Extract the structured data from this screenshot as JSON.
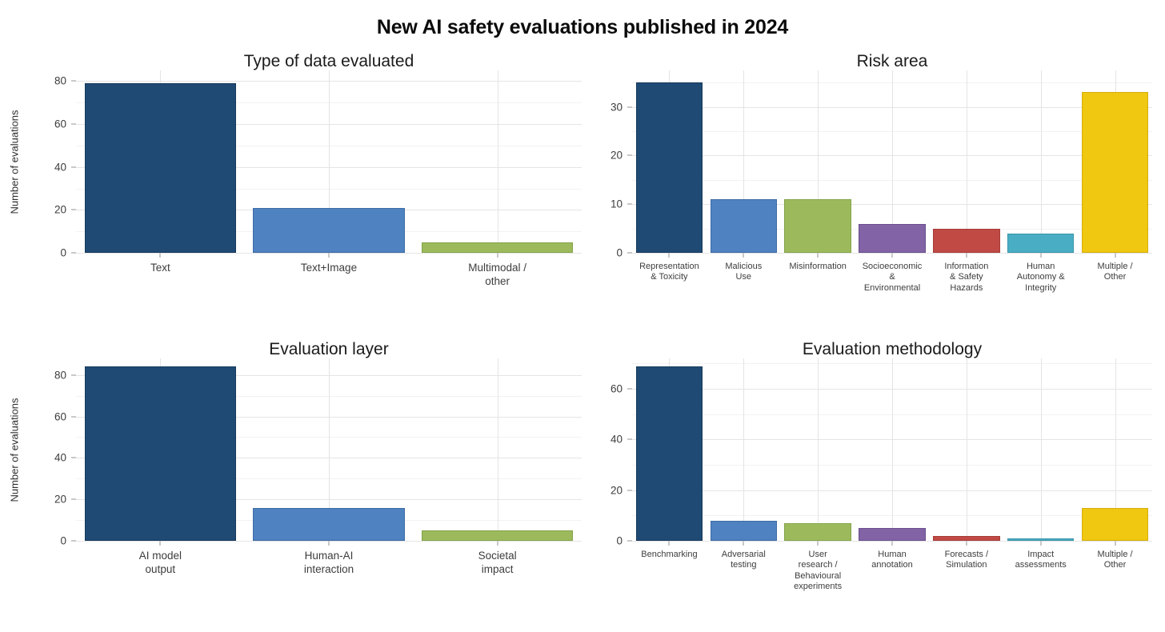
{
  "page": {
    "title": "New AI safety evaluations published in 2024"
  },
  "y_axis_label": "Number of evaluations",
  "palette": {
    "navy": {
      "fill": "#1F4A74",
      "stroke": "#16395B"
    },
    "blue": {
      "fill": "#4E82C0",
      "stroke": "#3D6BA5"
    },
    "green": {
      "fill": "#9CBA5C",
      "stroke": "#84A349"
    },
    "purple": {
      "fill": "#8263A6",
      "stroke": "#6B4F8E"
    },
    "red": {
      "fill": "#C14A45",
      "stroke": "#A53B37"
    },
    "teal": {
      "fill": "#49AEC4",
      "stroke": "#3895AB"
    },
    "yellow": {
      "fill": "#F0C711",
      "stroke": "#D4AE0C"
    }
  },
  "grid": {
    "major": "#E4E4E4",
    "minor": "#F2F2F2",
    "tick": "#C9C9C9"
  },
  "chart_data": [
    {
      "type": "bar",
      "title": "Type of data evaluated",
      "categories": [
        "Text",
        "Text+Image",
        "Multimodal /\nother"
      ],
      "values": [
        79,
        21,
        5
      ],
      "colors": [
        "navy",
        "blue",
        "green"
      ],
      "ylabel": "Number of evaluations",
      "ylim": [
        0,
        85
      ],
      "yticks": [
        0,
        20,
        40,
        60,
        80
      ],
      "yticks_minor": [
        10,
        30,
        50,
        70
      ],
      "grid_on": true,
      "legend": "none"
    },
    {
      "type": "bar",
      "title": "Risk area",
      "categories": [
        "Representation\n& Toxicity",
        "Malicious\nUse",
        "Misinformation",
        "Socioeconomic\n&\nEnvironmental",
        "Information\n& Safety\nHazards",
        "Human\nAutonomy &\nIntegrity",
        "Multiple /\nOther"
      ],
      "values": [
        35,
        11,
        11,
        6,
        5,
        4,
        33
      ],
      "colors": [
        "navy",
        "blue",
        "green",
        "purple",
        "red",
        "teal",
        "yellow"
      ],
      "ylabel": "",
      "ylim": [
        0,
        37.5
      ],
      "yticks": [
        0,
        10,
        20,
        30
      ],
      "yticks_minor": [
        5,
        15,
        25,
        35
      ],
      "grid_on": true,
      "legend": "none"
    },
    {
      "type": "bar",
      "title": "Evaluation layer",
      "categories": [
        "AI model\noutput",
        "Human-AI\ninteraction",
        "Societal\nimpact"
      ],
      "values": [
        84,
        16,
        5
      ],
      "colors": [
        "navy",
        "blue",
        "green"
      ],
      "ylabel": "Number of evaluations",
      "ylim": [
        0,
        88
      ],
      "yticks": [
        0,
        20,
        40,
        60,
        80
      ],
      "yticks_minor": [
        10,
        30,
        50,
        70
      ],
      "grid_on": true,
      "legend": "none"
    },
    {
      "type": "bar",
      "title": "Evaluation methodology",
      "categories": [
        "Benchmarking",
        "Adversarial\ntesting",
        "User\nresearch /\nBehavioural\nexperiments",
        "Human\nannotation",
        "Forecasts /\nSimulation",
        "Impact\nassessments",
        "Multiple /\nOther"
      ],
      "values": [
        69,
        8,
        7,
        5,
        2,
        1,
        13
      ],
      "colors": [
        "navy",
        "blue",
        "green",
        "purple",
        "red",
        "teal",
        "yellow"
      ],
      "ylabel": "",
      "ylim": [
        0,
        72
      ],
      "yticks": [
        0,
        20,
        40,
        60
      ],
      "yticks_minor": [
        10,
        30,
        50,
        70
      ],
      "grid_on": true,
      "legend": "none"
    }
  ]
}
